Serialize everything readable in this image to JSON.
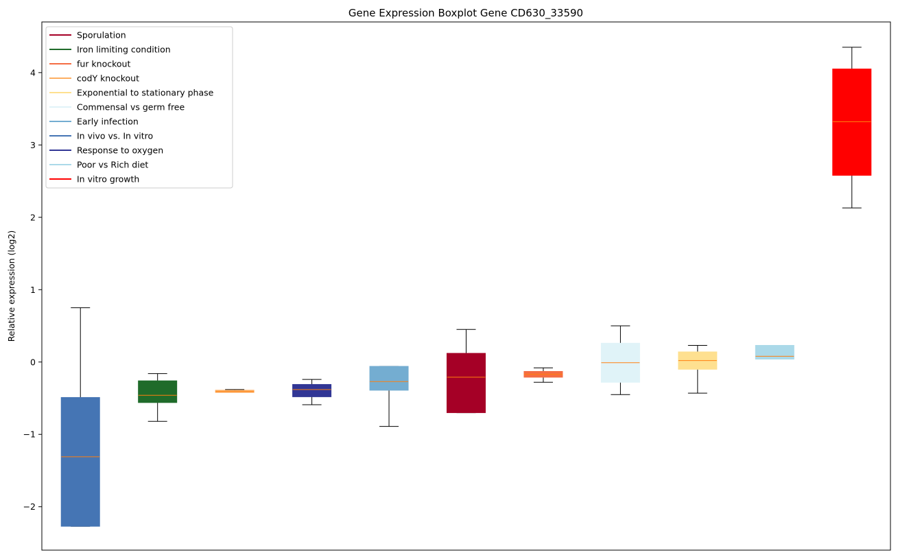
{
  "chart_data": {
    "type": "box",
    "title": "Gene Expression Boxplot Gene CD630_33590",
    "xlabel": "",
    "ylabel": "Relative expression (log2)",
    "ylim": [
      -2.6,
      4.7
    ],
    "y_ticks": [
      -2,
      -1,
      0,
      1,
      2,
      3,
      4
    ],
    "y_tick_labels": [
      "−2",
      "−1",
      "0",
      "1",
      "2",
      "3",
      "4"
    ],
    "x_ticks_shown": false,
    "grid": false,
    "legend_position": "upper-left",
    "median_color": "#ff7f0e",
    "series": [
      {
        "name": "Sporulation",
        "color": "#a50026"
      },
      {
        "name": "Iron limiting condition",
        "color": "#1f6b2a"
      },
      {
        "name": "fur knockout",
        "color": "#f46d43"
      },
      {
        "name": "codY knockout",
        "color": "#fdae61"
      },
      {
        "name": "Exponential to stationary phase",
        "color": "#fee090"
      },
      {
        "name": "Commensal vs germ free",
        "color": "#e0f3f8"
      },
      {
        "name": "Early infection",
        "color": "#74add1"
      },
      {
        "name": "In vivo vs. In vitro",
        "color": "#4575b4"
      },
      {
        "name": "Response to oxygen",
        "color": "#313695"
      },
      {
        "name": "Poor vs Rich diet",
        "color": "#abd9e9"
      },
      {
        "name": "In vitro growth",
        "color": "#ff0000"
      }
    ],
    "boxes": [
      {
        "series": "In vivo vs. In vitro",
        "color": "#4575b4",
        "whislo": -2.27,
        "q1": -2.27,
        "med": -1.31,
        "q3": -0.49,
        "whishi": 0.75
      },
      {
        "series": "Iron limiting condition",
        "color": "#1f6b2a",
        "whislo": -0.82,
        "q1": -0.56,
        "med": -0.46,
        "q3": -0.26,
        "whishi": -0.16
      },
      {
        "series": "codY knockout",
        "color": "#fdae61",
        "whislo": -0.42,
        "q1": -0.42,
        "med": -0.41,
        "q3": -0.39,
        "whishi": -0.38
      },
      {
        "series": "Response to oxygen",
        "color": "#313695",
        "whislo": -0.59,
        "q1": -0.48,
        "med": -0.38,
        "q3": -0.31,
        "whishi": -0.24
      },
      {
        "series": "Early infection",
        "color": "#74add1",
        "whislo": -0.89,
        "q1": -0.39,
        "med": -0.27,
        "q3": -0.06,
        "whishi": -0.06
      },
      {
        "series": "Sporulation",
        "color": "#a50026",
        "whislo": -0.7,
        "q1": -0.7,
        "med": -0.21,
        "q3": 0.12,
        "whishi": 0.45
      },
      {
        "series": "fur knockout",
        "color": "#f46d43",
        "whislo": -0.28,
        "q1": -0.21,
        "med": -0.17,
        "q3": -0.13,
        "whishi": -0.08
      },
      {
        "series": "Commensal vs germ free",
        "color": "#e0f3f8",
        "whislo": -0.45,
        "q1": -0.28,
        "med": -0.01,
        "q3": 0.26,
        "whishi": 0.5
      },
      {
        "series": "Exponential to stationary phase",
        "color": "#fee090",
        "whislo": -0.43,
        "q1": -0.1,
        "med": 0.02,
        "q3": 0.14,
        "whishi": 0.23
      },
      {
        "series": "Poor vs Rich diet",
        "color": "#abd9e9",
        "whislo": 0.04,
        "q1": 0.04,
        "med": 0.08,
        "q3": 0.23,
        "whishi": 0.23
      },
      {
        "series": "In vitro growth",
        "color": "#ff0000",
        "whislo": 2.13,
        "q1": 2.58,
        "med": 3.32,
        "q3": 4.05,
        "whishi": 4.35
      }
    ]
  }
}
